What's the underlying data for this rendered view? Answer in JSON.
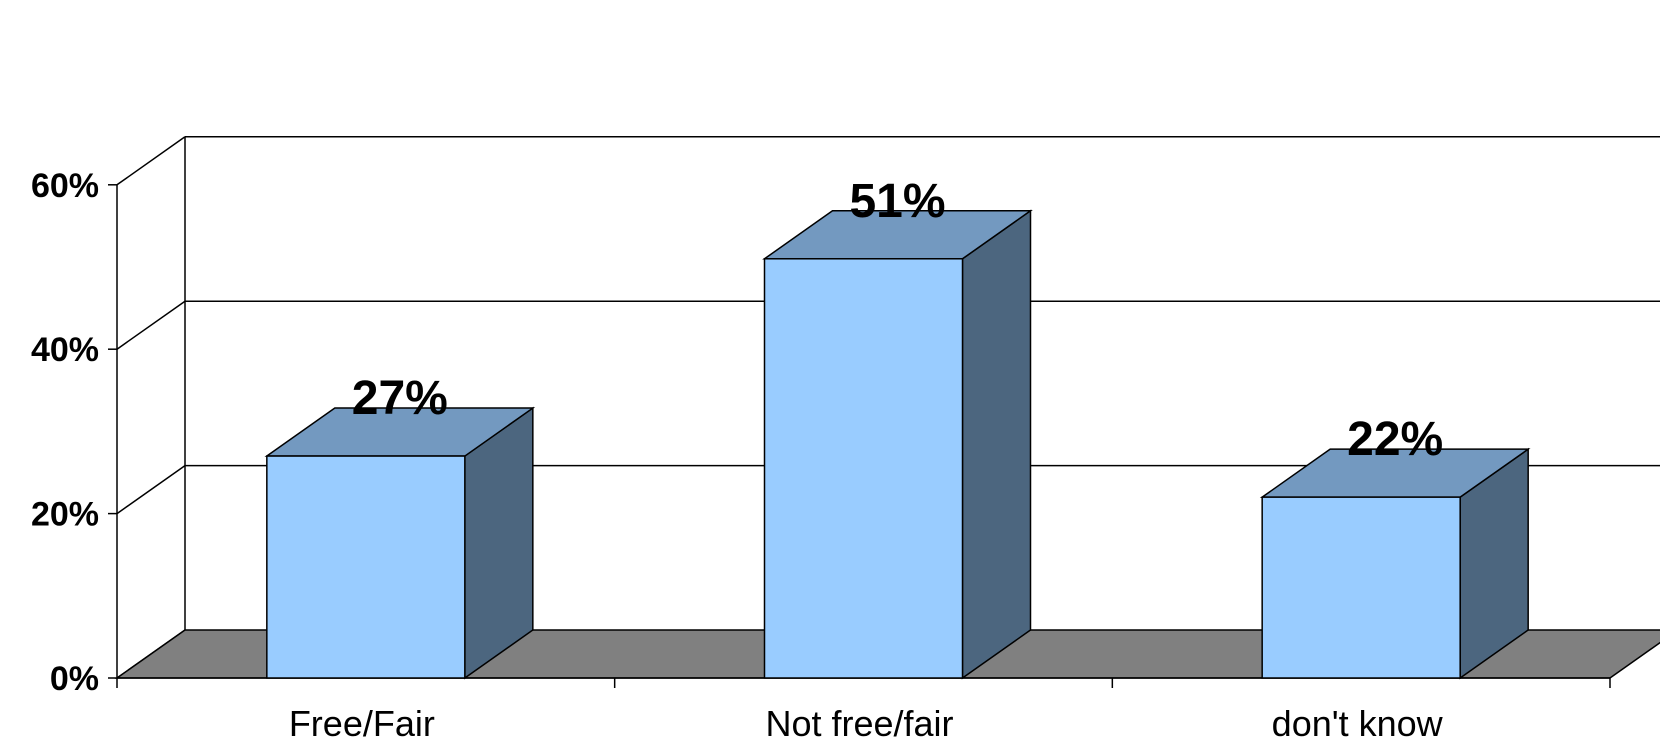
{
  "chart_data": {
    "type": "bar",
    "categories": [
      "Free/Fair",
      "Not free/fair",
      "don't know"
    ],
    "values": [
      27,
      51,
      22
    ],
    "data_labels": [
      "27%",
      "51%",
      "22%"
    ],
    "ylim": [
      0,
      60
    ],
    "yticks": [
      0,
      20,
      40,
      60
    ],
    "ytick_labels": [
      "0%",
      "20%",
      "40%",
      "60%"
    ],
    "gridlines": true,
    "three_d": true,
    "colors": {
      "bar_front": "#99CCFF",
      "bar_top": "#7399C0",
      "bar_side": "#4C667F",
      "floor": "#808080",
      "lines": "#000000"
    }
  }
}
